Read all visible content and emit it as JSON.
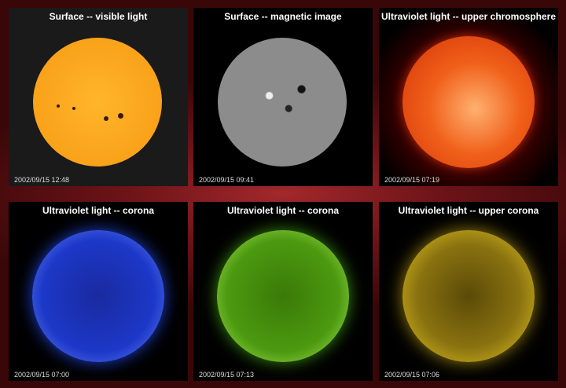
{
  "panels": [
    {
      "title": "Surface -- visible light",
      "timestamp": "2002/09/15 12:48",
      "color": "#f7a21c"
    },
    {
      "title": "Surface -- magnetic image",
      "timestamp": "2002/09/15 09:41",
      "color": "#8c8c8c"
    },
    {
      "title": "Ultraviolet light -- upper chromosphere",
      "timestamp": "2002/09/15 07:19",
      "color": "#e8501a"
    },
    {
      "title": "Ultraviolet light -- corona",
      "timestamp": "2002/09/15 07:00",
      "color": "#2a4ee0"
    },
    {
      "title": "Ultraviolet light -- corona",
      "timestamp": "2002/09/15 07:13",
      "color": "#5aa012"
    },
    {
      "title": "Ultraviolet light -- upper corona",
      "timestamp": "2002/09/15 07:06",
      "color": "#b89a10"
    }
  ]
}
